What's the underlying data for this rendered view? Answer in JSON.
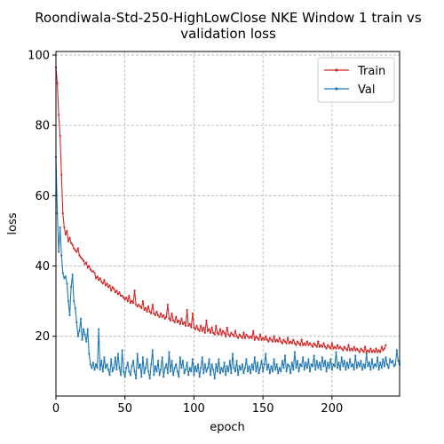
{
  "chart_data": {
    "type": "line",
    "title_lines": [
      "Roondiwala-Std-250-HighLowClose NKE Window 1 train vs",
      "validation loss"
    ],
    "xlabel": "epoch",
    "ylabel": "loss",
    "xlim": [
      0,
      249
    ],
    "ylim": [
      3,
      101
    ],
    "xticks": [
      0,
      50,
      100,
      150,
      200
    ],
    "yticks": [
      20,
      40,
      60,
      80,
      100
    ],
    "grid": true,
    "legend_position": "top-right",
    "series": [
      {
        "name": "Train",
        "color": "#d62728",
        "y": [
          96.5,
          92.0,
          83.0,
          77.0,
          66.0,
          55.0,
          51.0,
          49.0,
          50.0,
          47.0,
          48.0,
          46.5,
          46.0,
          45.0,
          44.5,
          44.0,
          45.0,
          43.0,
          42.5,
          42.0,
          41.5,
          40.5,
          41.0,
          39.5,
          40.0,
          39.0,
          38.5,
          38.5,
          38.0,
          36.5,
          37.0,
          36.0,
          36.5,
          35.5,
          35.0,
          36.0,
          34.5,
          35.0,
          34.0,
          34.5,
          33.0,
          34.0,
          33.5,
          32.5,
          33.0,
          32.0,
          32.5,
          31.5,
          31.5,
          31.0,
          30.5,
          31.0,
          30.0,
          31.5,
          29.5,
          30.0,
          29.5,
          33.0,
          29.0,
          28.5,
          29.0,
          28.5,
          28.0,
          30.0,
          27.5,
          28.0,
          27.0,
          28.5,
          27.0,
          26.5,
          29.0,
          26.5,
          26.0,
          27.0,
          26.0,
          25.5,
          26.5,
          25.5,
          26.0,
          25.0,
          25.5,
          29.0,
          25.0,
          24.5,
          26.5,
          24.5,
          24.0,
          25.5,
          24.0,
          24.5,
          23.5,
          25.0,
          23.5,
          24.0,
          23.0,
          27.5,
          23.0,
          23.5,
          22.5,
          26.5,
          22.5,
          22.0,
          23.0,
          22.0,
          21.5,
          23.0,
          21.5,
          22.5,
          21.0,
          24.5,
          21.5,
          22.0,
          21.0,
          22.5,
          21.0,
          20.5,
          23.0,
          21.0,
          20.5,
          22.0,
          20.5,
          21.5,
          21.0,
          20.0,
          22.5,
          20.5,
          20.0,
          21.0,
          20.5,
          20.0,
          21.5,
          20.0,
          19.5,
          20.5,
          20.0,
          19.5,
          21.0,
          19.5,
          20.5,
          20.0,
          19.5,
          20.0,
          19.5,
          21.5,
          19.0,
          20.0,
          19.5,
          19.0,
          20.5,
          19.0,
          19.5,
          19.0,
          20.0,
          19.0,
          18.5,
          19.5,
          19.0,
          18.5,
          20.0,
          18.5,
          19.0,
          18.5,
          19.5,
          18.5,
          18.0,
          19.0,
          18.5,
          18.0,
          19.5,
          18.0,
          18.5,
          18.0,
          19.0,
          18.0,
          17.5,
          18.5,
          18.0,
          17.5,
          19.0,
          17.5,
          18.0,
          17.5,
          18.5,
          17.5,
          18.0,
          17.5,
          17.0,
          18.0,
          17.5,
          17.0,
          18.5,
          17.0,
          17.5,
          17.0,
          18.0,
          17.0,
          16.5,
          17.5,
          17.0,
          16.5,
          18.0,
          16.5,
          17.0,
          16.5,
          17.5,
          16.5,
          17.0,
          16.5,
          16.0,
          17.0,
          16.5,
          16.0,
          17.5,
          16.0,
          16.5,
          16.0,
          17.0,
          16.0,
          16.5,
          16.0,
          15.5,
          16.5,
          16.0,
          15.5,
          17.0,
          15.5,
          16.0,
          15.5,
          16.5,
          15.5,
          16.0,
          15.5,
          16.5,
          15.5,
          16.0,
          15.5,
          17.0,
          16.0,
          16.5,
          17.5
        ]
      },
      {
        "name": "Val",
        "color": "#1f77b4",
        "y": [
          71.0,
          55.0,
          44.0,
          51.0,
          43.0,
          38.0,
          36.5,
          37.0,
          35.0,
          30.0,
          26.0,
          34.0,
          37.5,
          30.0,
          28.0,
          24.0,
          20.0,
          21.5,
          25.0,
          19.0,
          22.0,
          20.5,
          18.5,
          22.0,
          15.0,
          12.0,
          11.0,
          12.5,
          10.5,
          12.0,
          11.0,
          22.0,
          10.5,
          13.0,
          10.0,
          14.0,
          11.0,
          12.0,
          10.5,
          9.0,
          13.5,
          10.0,
          11.0,
          14.0,
          10.5,
          15.0,
          11.0,
          9.0,
          16.0,
          10.0,
          8.5,
          11.0,
          12.5,
          10.0,
          9.0,
          11.5,
          13.0,
          10.0,
          8.0,
          15.0,
          11.0,
          12.0,
          8.5,
          14.0,
          9.5,
          11.0,
          13.5,
          10.0,
          8.0,
          12.0,
          16.0,
          9.0,
          11.5,
          10.0,
          13.0,
          9.0,
          10.5,
          14.0,
          8.5,
          11.0,
          12.0,
          9.5,
          15.5,
          10.0,
          13.0,
          9.0,
          11.0,
          12.0,
          10.0,
          8.5,
          14.0,
          11.0,
          13.0,
          9.5,
          10.5,
          12.5,
          9.0,
          11.0,
          10.0,
          13.5,
          9.0,
          11.5,
          10.0,
          12.0,
          8.5,
          11.0,
          14.0,
          9.5,
          12.0,
          10.0,
          11.0,
          13.5,
          9.0,
          12.0,
          10.5,
          8.0,
          12.0,
          10.0,
          13.5,
          9.5,
          11.0,
          10.0,
          12.5,
          9.0,
          11.5,
          10.0,
          13.0,
          9.5,
          15.0,
          11.0,
          10.0,
          13.0,
          9.0,
          11.5,
          10.5,
          12.0,
          9.5,
          11.0,
          13.5,
          10.0,
          11.5,
          9.5,
          12.0,
          10.5,
          14.0,
          10.0,
          12.5,
          9.5,
          11.0,
          13.0,
          10.0,
          12.0,
          15.0,
          10.5,
          12.0,
          9.5,
          11.5,
          10.0,
          13.5,
          10.5,
          12.0,
          9.5,
          11.0,
          10.0,
          13.0,
          11.0,
          14.5,
          10.0,
          12.0,
          11.5,
          9.5,
          12.5,
          10.5,
          15.5,
          11.0,
          13.0,
          10.0,
          12.0,
          11.5,
          14.0,
          10.5,
          12.5,
          11.0,
          13.5,
          10.0,
          12.0,
          11.5,
          14.5,
          10.5,
          13.0,
          11.0,
          12.5,
          10.5,
          14.0,
          11.5,
          13.0,
          10.0,
          12.5,
          11.0,
          13.5,
          10.5,
          12.0,
          11.5,
          15.5,
          11.0,
          12.5,
          10.5,
          14.0,
          11.5,
          13.0,
          10.5,
          12.5,
          11.0,
          13.5,
          11.5,
          12.0,
          10.5,
          14.5,
          11.0,
          12.5,
          11.5,
          13.0,
          10.5,
          12.0,
          11.0,
          15.0,
          11.5,
          12.5,
          10.5,
          13.5,
          11.0,
          12.0,
          11.5,
          14.0,
          10.5,
          12.5,
          11.0,
          13.5,
          11.5,
          14.0,
          12.0,
          11.0,
          13.5,
          12.5,
          13.0,
          11.5,
          12.0,
          16.0,
          13.0,
          12.0
        ]
      }
    ]
  }
}
